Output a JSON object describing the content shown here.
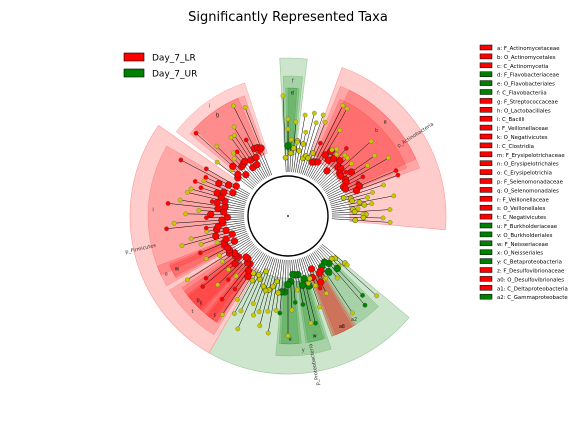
{
  "chart_data": {
    "type": "cladogram",
    "title": "Significantly Represented Taxa",
    "classes": [
      {
        "name": "Day_7_LR",
        "color": "#ff0000"
      },
      {
        "name": "Day_7_UR",
        "color": "#008000"
      }
    ],
    "taxa": [
      {
        "code": "a",
        "name": "F_Actinomycetaceae",
        "group": "Day_7_LR"
      },
      {
        "code": "b",
        "name": "O_Actinomycetales",
        "group": "Day_7_LR"
      },
      {
        "code": "c",
        "name": "C_Actinomycetia",
        "group": "Day_7_LR"
      },
      {
        "code": "d",
        "name": "F_Flavobacteriaceae",
        "group": "Day_7_UR"
      },
      {
        "code": "e",
        "name": "O_Flavobacteriales",
        "group": "Day_7_UR"
      },
      {
        "code": "f",
        "name": "C_Flavobacteriia",
        "group": "Day_7_UR"
      },
      {
        "code": "g",
        "name": "F_Streptococcaceae",
        "group": "Day_7_LR"
      },
      {
        "code": "h",
        "name": "O_Lactobacillales",
        "group": "Day_7_LR"
      },
      {
        "code": "i",
        "name": "C_Bacilli",
        "group": "Day_7_LR"
      },
      {
        "code": "j",
        "name": "F_Veillonellaceae",
        "group": "Day_7_LR"
      },
      {
        "code": "k",
        "name": "O_Negativicutes",
        "group": "Day_7_LR"
      },
      {
        "code": "l",
        "name": "C_Clostridia",
        "group": "Day_7_LR"
      },
      {
        "code": "m",
        "name": "F_Erysipelotrichaceae",
        "group": "Day_7_LR"
      },
      {
        "code": "n",
        "name": "O_Erysipelotrichales",
        "group": "Day_7_LR"
      },
      {
        "code": "o",
        "name": "C_Erysipelotrichia",
        "group": "Day_7_LR"
      },
      {
        "code": "p",
        "name": "F_Selenomonadaceae",
        "group": "Day_7_LR"
      },
      {
        "code": "q",
        "name": "O_Selenomonadales",
        "group": "Day_7_LR"
      },
      {
        "code": "r",
        "name": "F_Veillonellaceae",
        "group": "Day_7_LR"
      },
      {
        "code": "s",
        "name": "O_Veillonellales",
        "group": "Day_7_LR"
      },
      {
        "code": "t",
        "name": "C_Negativicutes",
        "group": "Day_7_LR"
      },
      {
        "code": "u",
        "name": "F_Burkholderiaceae",
        "group": "Day_7_UR"
      },
      {
        "code": "v",
        "name": "O_Burkholderiales",
        "group": "Day_7_UR"
      },
      {
        "code": "w",
        "name": "F_Neisseriaceae",
        "group": "Day_7_UR"
      },
      {
        "code": "x",
        "name": "O_Neisseriales",
        "group": "Day_7_UR"
      },
      {
        "code": "y",
        "name": "C_Betaproteobacteria",
        "group": "Day_7_UR"
      },
      {
        "code": "z",
        "name": "F_Desulfovibrionaceae",
        "group": "Day_7_LR"
      },
      {
        "code": "a0",
        "name": "O_Desulfovibrionales",
        "group": "Day_7_LR"
      },
      {
        "code": "a1",
        "name": "C_Deltaproteobacteria",
        "group": "Day_7_LR"
      },
      {
        "code": "a2",
        "name": "C_Gammaproteobacte",
        "group": "Day_7_UR"
      }
    ],
    "phyla": [
      {
        "name": "p_Actinobacteria",
        "group": "Day_7_LR",
        "start": 20,
        "end": 95
      },
      {
        "name": "p_Proteobacteria",
        "group": "Day_7_UR",
        "start": 130,
        "end": 210
      },
      {
        "name": "p_Firmicutes",
        "group": "Day_7_LR",
        "start": 210,
        "end": 305
      },
      {
        "name": "",
        "group": "Day_7_UR",
        "start": 357,
        "end": 367
      }
    ],
    "clade_wedges": [
      {
        "label": "c",
        "group": "Day_7_LR",
        "start": 22,
        "end": 70
      },
      {
        "label": "b",
        "group": "Day_7_LR",
        "start": 24,
        "end": 68
      },
      {
        "label": "a",
        "group": "Day_7_LR",
        "start": 26,
        "end": 66
      },
      {
        "label": "f",
        "group": "Day_7_UR",
        "start": 358,
        "end": 366
      },
      {
        "label": "e",
        "group": "Day_7_UR",
        "start": 359,
        "end": 365
      },
      {
        "label": "d",
        "group": "Day_7_UR",
        "start": 360,
        "end": 364
      },
      {
        "label": "a2",
        "group": "Day_7_UR",
        "start": 135,
        "end": 160
      },
      {
        "label": "y",
        "group": "Day_7_UR",
        "start": 162,
        "end": 185
      },
      {
        "label": "x",
        "group": "Day_7_UR",
        "start": 163,
        "end": 172
      },
      {
        "label": "v",
        "group": "Day_7_UR",
        "start": 174,
        "end": 184
      },
      {
        "label": "w",
        "group": "Day_7_UR",
        "start": 164,
        "end": 171
      },
      {
        "label": "u",
        "group": "Day_7_UR",
        "start": 175,
        "end": 183
      },
      {
        "label": "a1",
        "group": "Day_7_LR",
        "start": 148,
        "end": 160
      },
      {
        "label": "a0",
        "group": "Day_7_LR",
        "start": 149,
        "end": 159
      },
      {
        "label": "z",
        "group": "Day_7_LR",
        "start": 150,
        "end": 158
      },
      {
        "label": "i",
        "group": "Day_7_LR",
        "start": 307,
        "end": 342
      },
      {
        "label": "h",
        "group": "Day_7_LR",
        "start": 310,
        "end": 340
      },
      {
        "label": "g",
        "group": "Day_7_LR",
        "start": 313,
        "end": 337
      },
      {
        "label": "l",
        "group": "Day_7_LR",
        "start": 245,
        "end": 300
      },
      {
        "label": "o",
        "group": "Day_7_LR",
        "start": 240,
        "end": 249
      },
      {
        "label": "n",
        "group": "Day_7_LR",
        "start": 241,
        "end": 248
      },
      {
        "label": "m",
        "group": "Day_7_LR",
        "start": 242,
        "end": 247
      },
      {
        "label": "t",
        "group": "Day_7_LR",
        "start": 212,
        "end": 238
      },
      {
        "label": "k",
        "group": "Day_7_LR",
        "start": 214,
        "end": 236
      },
      {
        "label": "j",
        "group": "Day_7_LR",
        "start": 216,
        "end": 234
      },
      {
        "label": "q",
        "group": "Day_7_LR",
        "start": 222,
        "end": 232
      },
      {
        "label": "p",
        "group": "Day_7_LR",
        "start": 223,
        "end": 231
      },
      {
        "label": "s",
        "group": "Day_7_LR",
        "start": 213,
        "end": 220
      },
      {
        "label": "r",
        "group": "Day_7_LR",
        "start": 214,
        "end": 219
      }
    ]
  }
}
